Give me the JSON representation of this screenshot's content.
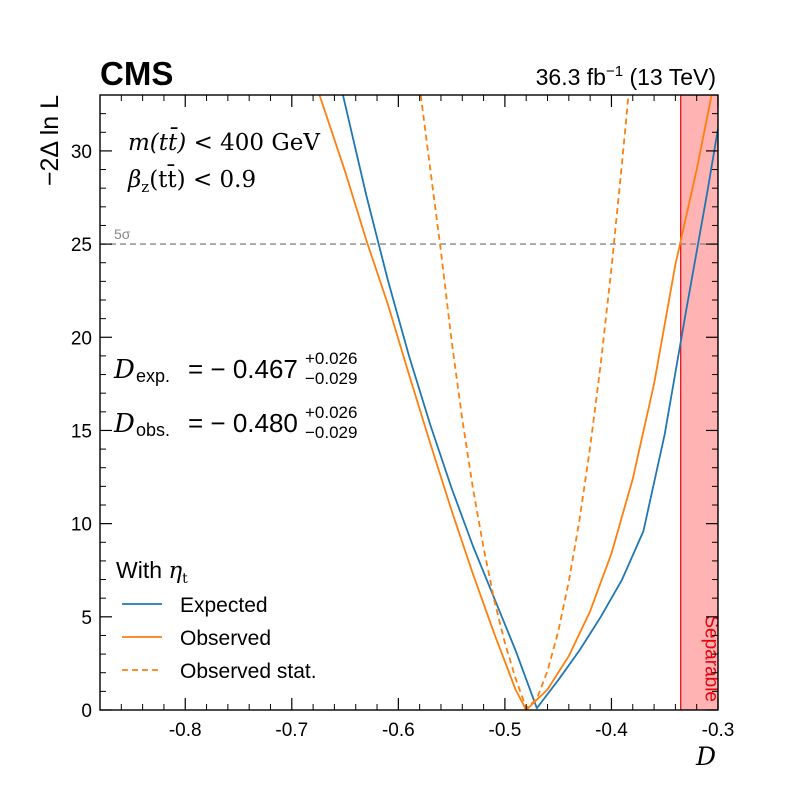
{
  "header": {
    "experiment": "CMS",
    "lumi": "36.3",
    "lumi_unit": "fb",
    "lumi_exp": "−1",
    "energy": "(13 TeV)"
  },
  "cuts": {
    "mass_lhs": "m(tt̄)",
    "mass_op": "<",
    "mass_rhs": "400 GeV",
    "beta_lhs": "β",
    "beta_sub": "z",
    "beta_arg": "(tt̄)",
    "beta_op": "<",
    "beta_rhs": "0.9"
  },
  "results": {
    "d_symbol": "D",
    "exp_label": "exp.",
    "exp_value": "= − 0.467",
    "exp_up": "+0.026",
    "exp_down": "−0.029",
    "obs_label": "obs.",
    "obs_value": "= − 0.480",
    "obs_up": "+0.026",
    "obs_down": "−0.029"
  },
  "legend": {
    "title_prefix": "With ",
    "title_symbol": "η",
    "title_sub": "t",
    "placement": "lower-left"
  },
  "chart_data": {
    "type": "line",
    "xlabel": "D",
    "ylabel": "−2Δ ln L",
    "xlim": [
      -0.88,
      -0.3
    ],
    "ylim": [
      0,
      33
    ],
    "x_ticks": [
      -0.8,
      -0.7,
      -0.6,
      -0.5,
      -0.4,
      -0.3
    ],
    "x_tick_labels": [
      "-0.8",
      "-0.7",
      "-0.6",
      "-0.5",
      "-0.4",
      "-0.3"
    ],
    "y_ticks": [
      0,
      5,
      10,
      15,
      20,
      25,
      30
    ],
    "y_tick_labels": [
      "0",
      "5",
      "10",
      "15",
      "20",
      "25",
      "30"
    ],
    "grid": false,
    "series": [
      {
        "name": "Expected",
        "color": "#1f77b4",
        "style": "solid",
        "x": [
          -0.652,
          -0.63,
          -0.61,
          -0.59,
          -0.57,
          -0.55,
          -0.53,
          -0.51,
          -0.49,
          -0.47,
          -0.45,
          -0.43,
          -0.41,
          -0.39,
          -0.37,
          -0.35,
          -0.33,
          -0.31,
          -0.3
        ],
        "y": [
          33.0,
          27.6,
          23.1,
          19.0,
          15.3,
          11.9,
          8.8,
          6.0,
          3.2,
          0.1,
          1.6,
          3.2,
          5.0,
          7.0,
          9.6,
          14.8,
          21.4,
          27.8,
          31.2
        ]
      },
      {
        "name": "Observed",
        "color": "#ff7f0e",
        "style": "solid",
        "x": [
          -0.674,
          -0.65,
          -0.63,
          -0.61,
          -0.59,
          -0.57,
          -0.55,
          -0.53,
          -0.51,
          -0.49,
          -0.48,
          -0.46,
          -0.44,
          -0.42,
          -0.4,
          -0.38,
          -0.36,
          -0.34,
          -0.32,
          -0.306
        ],
        "y": [
          33.0,
          28.9,
          25.2,
          21.8,
          18.0,
          14.3,
          10.7,
          7.3,
          4.1,
          1.1,
          0.0,
          1.1,
          2.9,
          5.3,
          8.4,
          12.4,
          17.5,
          23.9,
          29.0,
          33.0
        ]
      },
      {
        "name": "Observed stat.",
        "color": "#ff7f0e",
        "style": "dashed",
        "x": [
          -0.579,
          -0.57,
          -0.56,
          -0.55,
          -0.54,
          -0.53,
          -0.52,
          -0.51,
          -0.5,
          -0.49,
          -0.48,
          -0.47,
          -0.46,
          -0.45,
          -0.44,
          -0.43,
          -0.42,
          -0.41,
          -0.4,
          -0.39,
          -0.384
        ],
        "y": [
          33.0,
          29.0,
          24.6,
          19.8,
          15.6,
          11.9,
          8.7,
          5.9,
          3.6,
          1.7,
          0.1,
          0.6,
          2.1,
          4.2,
          6.9,
          10.2,
          14.1,
          18.6,
          23.7,
          29.4,
          33.0
        ]
      }
    ],
    "hline": {
      "y": 25,
      "label": "5σ",
      "color": "#888888"
    },
    "band": {
      "x_start": -0.335,
      "x_end": -0.3,
      "label": "Separable",
      "fill": "#ffb3b3",
      "edge": "#e8000b"
    }
  }
}
